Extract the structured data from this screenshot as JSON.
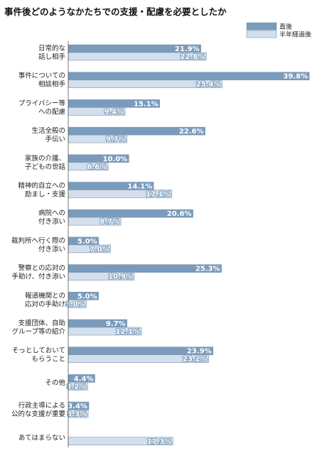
{
  "chart_data": {
    "type": "bar",
    "orientation": "horizontal",
    "title": "事件後どのようなかたちでの支援・配慮を必要としたか",
    "xlim": [
      0,
      40
    ],
    "legend_position": "top-right",
    "value_suffix": "%",
    "categories": [
      [
        "日常的な",
        "話し相手"
      ],
      [
        "事件についての",
        "相談相手"
      ],
      [
        "プライバシー等",
        "への配慮"
      ],
      [
        "生活全般の",
        "手伝い"
      ],
      [
        "家族の介護、",
        "子どもの世話"
      ],
      [
        "精神的自立への",
        "励まし・支援"
      ],
      [
        "病院への",
        "付き添い"
      ],
      [
        "裁判所へ行く際の",
        "付き添い"
      ],
      [
        "警察との応対の",
        "手助け、付き添い"
      ],
      [
        "報道機関との",
        "応対の手助け"
      ],
      [
        "支援団体、自助",
        "グループ等の紹介"
      ],
      [
        "そっとしておいて",
        "もらうこと"
      ],
      [
        "その他"
      ],
      [
        "行政主導による",
        "公的な支援が重要"
      ],
      [
        "あてはまらない"
      ]
    ],
    "series": [
      {
        "name": "直後",
        "color": "#7a9bbb",
        "values": [
          21.9,
          39.8,
          15.1,
          22.6,
          10.0,
          14.1,
          20.6,
          5.0,
          25.3,
          5.0,
          9.7,
          23.9,
          4.4,
          3.4,
          null
        ]
      },
      {
        "name": "半年経過後",
        "color": "#d3dfec",
        "values": [
          22.8,
          25.4,
          9.4,
          9.7,
          6.6,
          17.1,
          8.7,
          7.0,
          10.9,
          3.0,
          12.1,
          23.2,
          3.2,
          3.3,
          17.3
        ]
      }
    ]
  }
}
